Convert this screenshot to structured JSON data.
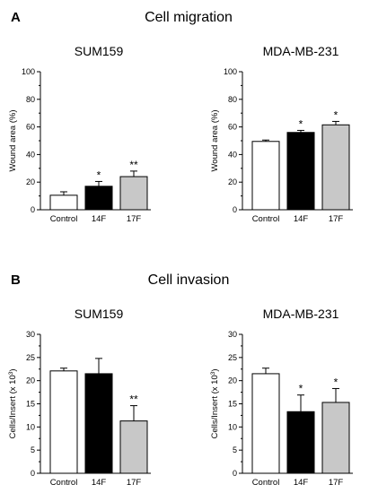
{
  "panels": [
    {
      "letter": "A",
      "title": "Cell migration"
    },
    {
      "letter": "B",
      "title": "Cell invasion"
    }
  ],
  "bar_colors": [
    "#ffffff",
    "#000000",
    "#c8c8c8"
  ],
  "chart_data": [
    {
      "type": "bar",
      "title": "SUM159",
      "xlabel": "",
      "ylabel": "Wound area (%)",
      "categories": [
        "Control",
        "14F",
        "17F"
      ],
      "values": [
        10.5,
        17,
        24
      ],
      "errors": [
        2.5,
        3.5,
        4
      ],
      "significance": [
        "",
        "*",
        "**"
      ],
      "ylim": [
        0,
        100
      ],
      "yticks": [
        0,
        20,
        40,
        60,
        80,
        100
      ]
    },
    {
      "type": "bar",
      "title": "MDA-MB-231",
      "xlabel": "",
      "ylabel": "Wound area (%)",
      "categories": [
        "Control",
        "14F",
        "17F"
      ],
      "values": [
        49.5,
        56,
        61.5
      ],
      "errors": [
        1,
        1.5,
        2.5
      ],
      "significance": [
        "",
        "*",
        "*"
      ],
      "ylim": [
        0,
        100
      ],
      "yticks": [
        0,
        20,
        40,
        60,
        80,
        100
      ]
    },
    {
      "type": "bar",
      "title": "SUM159",
      "xlabel": "",
      "ylabel": "Cells/Insert (x 10",
      "ylabel_sup": "3",
      "ylabel_tail": ")",
      "categories": [
        "Control",
        "14F",
        "17F"
      ],
      "values": [
        22.1,
        21.5,
        11.3
      ],
      "errors": [
        0.6,
        3.3,
        3.3
      ],
      "significance": [
        "",
        "",
        "**"
      ],
      "ylim": [
        0,
        30
      ],
      "yticks": [
        0,
        5,
        10,
        15,
        20,
        25,
        30
      ]
    },
    {
      "type": "bar",
      "title": "MDA-MB-231",
      "xlabel": "",
      "ylabel": "Cells/Insert (x 10",
      "ylabel_sup": "3",
      "ylabel_tail": ")",
      "categories": [
        "Control",
        "14F",
        "17F"
      ],
      "values": [
        21.5,
        13.3,
        15.3
      ],
      "errors": [
        1.2,
        3.6,
        3
      ],
      "significance": [
        "",
        "*",
        "*"
      ],
      "ylim": [
        0,
        30
      ],
      "yticks": [
        0,
        5,
        10,
        15,
        20,
        25,
        30
      ]
    }
  ]
}
